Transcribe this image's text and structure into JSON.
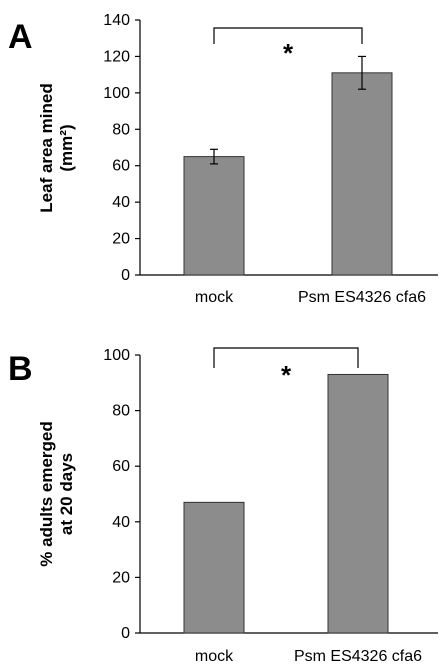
{
  "chart_data": [
    {
      "panel": "A",
      "type": "bar",
      "categories": [
        "mock",
        "Psm ES4326 cfa6"
      ],
      "values": [
        65,
        111
      ],
      "error": [
        4,
        9
      ],
      "ylabel_lines": [
        "Leaf area mined",
        "(mm²)"
      ],
      "ylim": [
        0,
        140
      ],
      "yticks": [
        0,
        20,
        40,
        60,
        80,
        100,
        120,
        140
      ],
      "significance": "*",
      "grid": false
    },
    {
      "panel": "B",
      "type": "bar",
      "categories": [
        "mock",
        "Psm ES4326 cfa6"
      ],
      "values": [
        47,
        93
      ],
      "ylabel_lines": [
        "% adults emerged",
        "at 20 days"
      ],
      "ylim": [
        0,
        100
      ],
      "yticks": [
        0,
        20,
        40,
        60,
        80,
        100
      ],
      "significance": "*",
      "grid": false
    }
  ]
}
